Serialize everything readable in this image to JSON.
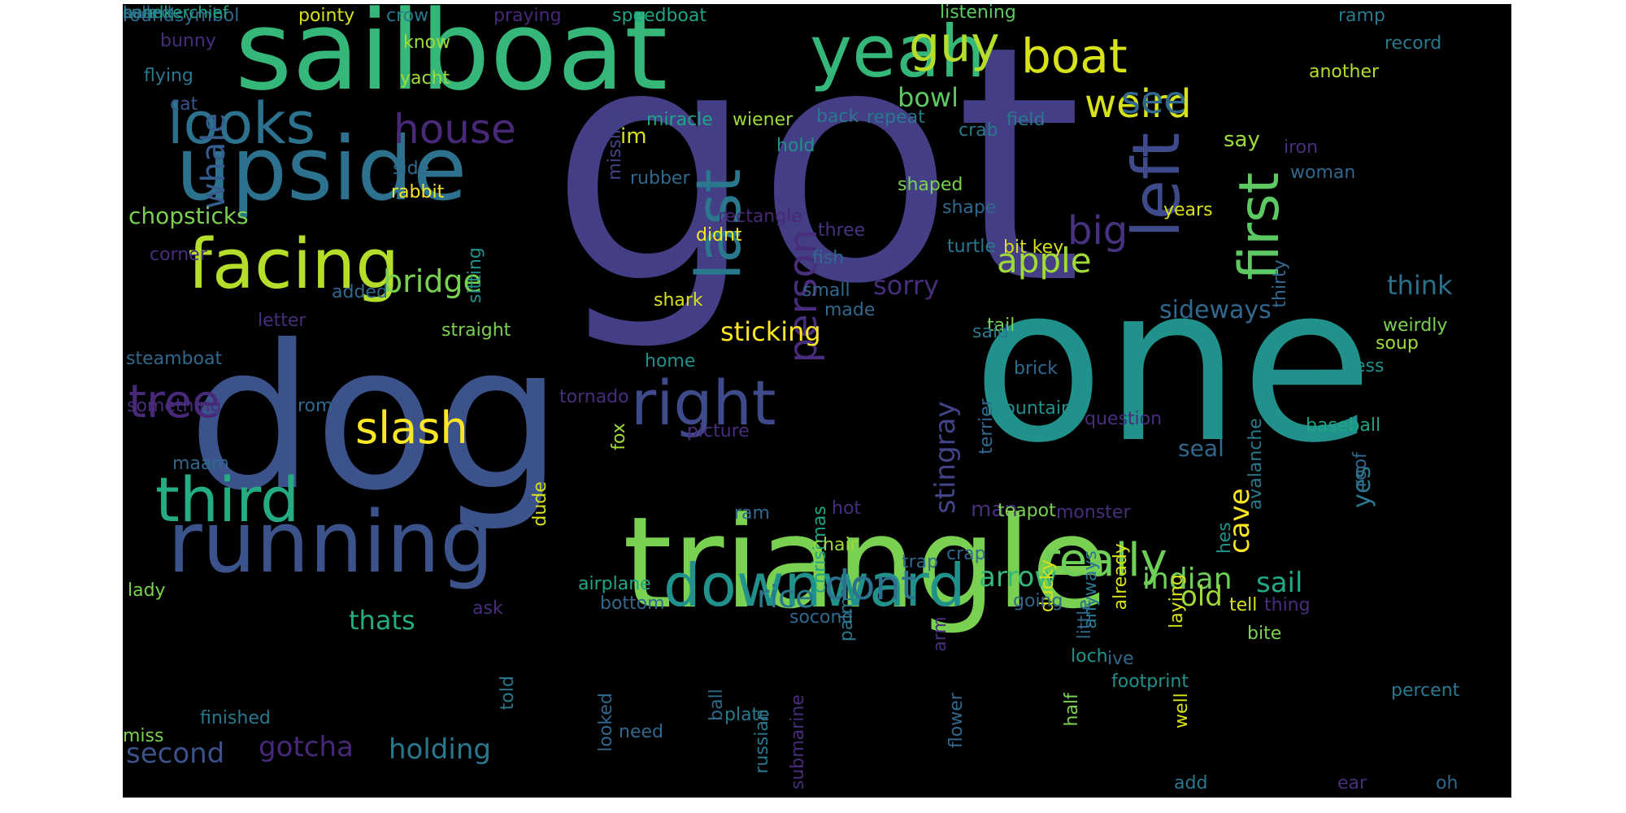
{
  "colors": {
    "page_background": "#ffffff",
    "cloud_background": "#000000",
    "palette": [
      "#440154",
      "#472c7a",
      "#3b518b",
      "#2c718e",
      "#21908d",
      "#27ad81",
      "#5cc863",
      "#aadc32",
      "#fde725"
    ]
  },
  "words": [
    {
      "text": "got",
      "weight": 1.0,
      "color": "#433e85"
    },
    {
      "text": "one",
      "weight": 0.62,
      "color": "#21918c"
    },
    {
      "text": "dog",
      "weight": 0.6,
      "color": "#3b528b"
    },
    {
      "text": "triangle",
      "weight": 0.57,
      "color": "#7ad151"
    },
    {
      "text": "sailboat",
      "weight": 0.49,
      "color": "#35b779"
    },
    {
      "text": "upside",
      "weight": 0.45,
      "color": "#2c728e"
    },
    {
      "text": "running",
      "weight": 0.4,
      "color": "#3b528b"
    },
    {
      "text": "yeah",
      "weight": 0.38,
      "color": "#35b779"
    },
    {
      "text": "facing",
      "weight": 0.38,
      "color": "#b5de2b"
    },
    {
      "text": "left",
      "weight": 0.36,
      "color": "#3e4a89"
    },
    {
      "text": "last",
      "weight": 0.35,
      "color": "#2a788e"
    },
    {
      "text": "third",
      "weight": 0.33,
      "color": "#25ac82"
    },
    {
      "text": "right",
      "weight": 0.33,
      "color": "#3e4a89"
    },
    {
      "text": "downward",
      "weight": 0.31,
      "color": "#21918c"
    },
    {
      "text": "looks",
      "weight": 0.3,
      "color": "#2c728e"
    },
    {
      "text": "first",
      "weight": 0.29,
      "color": "#5ec962"
    },
    {
      "text": "guy",
      "weight": 0.27,
      "color": "#b5de2b"
    },
    {
      "text": "boat",
      "weight": 0.27,
      "color": "#d8e219"
    },
    {
      "text": "really",
      "weight": 0.26,
      "color": "#6ece58"
    },
    {
      "text": "person",
      "weight": 0.25,
      "color": "#472d7b"
    },
    {
      "text": "tree",
      "weight": 0.23,
      "color": "#482878"
    },
    {
      "text": "slash",
      "weight": 0.23,
      "color": "#fde725"
    },
    {
      "text": "house",
      "weight": 0.22,
      "color": "#482878"
    },
    {
      "text": "dont",
      "weight": 0.22,
      "color": "#2c728e"
    },
    {
      "text": "weird",
      "weight": 0.2,
      "color": "#d8e219"
    },
    {
      "text": "big",
      "weight": 0.2,
      "color": "#46327e"
    },
    {
      "text": "see",
      "weight": 0.2,
      "color": "#31688e"
    },
    {
      "text": "whale",
      "weight": 0.19,
      "color": "#365c8d"
    },
    {
      "text": "apple",
      "weight": 0.18,
      "color": "#a0da39"
    },
    {
      "text": "rice",
      "weight": 0.17,
      "color": "#2a788e"
    },
    {
      "text": "bridge",
      "weight": 0.16,
      "color": "#7ad151"
    },
    {
      "text": "stingray",
      "weight": 0.16,
      "color": "#414487"
    },
    {
      "text": "second",
      "weight": 0.16,
      "color": "#3b528b"
    },
    {
      "text": "indian",
      "weight": 0.16,
      "color": "#6ece58"
    },
    {
      "text": "cave",
      "weight": 0.15,
      "color": "#fde725"
    },
    {
      "text": "sail",
      "weight": 0.15,
      "color": "#22a884"
    },
    {
      "text": "old",
      "weight": 0.15,
      "color": "#a0da39"
    },
    {
      "text": "holding",
      "weight": 0.15,
      "color": "#2a788e"
    },
    {
      "text": "arrow",
      "weight": 0.15,
      "color": "#35b779"
    },
    {
      "text": "gotcha",
      "weight": 0.15,
      "color": "#482878"
    },
    {
      "text": "sticking",
      "weight": 0.14,
      "color": "#fde725"
    },
    {
      "text": "bowl",
      "weight": 0.14,
      "color": "#5ec962"
    },
    {
      "text": "thats",
      "weight": 0.14,
      "color": "#25ac82"
    },
    {
      "text": "sorry",
      "weight": 0.14,
      "color": "#472d7b"
    },
    {
      "text": "think",
      "weight": 0.14,
      "color": "#2c728e"
    },
    {
      "text": "yes",
      "weight": 0.14,
      "color": "#2a788e"
    },
    {
      "text": "sideways",
      "weight": 0.12,
      "color": "#31688e"
    },
    {
      "text": "seal",
      "weight": 0.12,
      "color": "#31688e"
    },
    {
      "text": "chopsticks",
      "weight": 0.12,
      "color": "#7ad151"
    },
    {
      "text": "say",
      "weight": 0.12,
      "color": "#a0da39"
    },
    {
      "text": "im",
      "weight": 0.11,
      "color": "#d8e219"
    },
    {
      "text": "man",
      "weight": 0.11,
      "color": "#472d7b"
    },
    {
      "text": "roundsymbol",
      "weight": 0.09,
      "color": "#31688e"
    },
    {
      "text": "pointy",
      "weight": 0.09,
      "color": "#d8e219"
    },
    {
      "text": "crow",
      "weight": 0.09,
      "color": "#2a788e"
    },
    {
      "text": "praying",
      "weight": 0.09,
      "color": "#482878"
    },
    {
      "text": "speedboat",
      "weight": 0.09,
      "color": "#20a486"
    },
    {
      "text": "listening",
      "weight": 0.09,
      "color": "#5ec962"
    },
    {
      "text": "ramp",
      "weight": 0.09,
      "color": "#2a788e"
    },
    {
      "text": "record",
      "weight": 0.09,
      "color": "#2a788e"
    },
    {
      "text": "another",
      "weight": 0.09,
      "color": "#b5de2b"
    },
    {
      "text": "bunny",
      "weight": 0.09,
      "color": "#472d7b"
    },
    {
      "text": "know",
      "weight": 0.09,
      "color": "#a0da39"
    },
    {
      "text": "yacht",
      "weight": 0.09,
      "color": "#a0da39"
    },
    {
      "text": "missing",
      "weight": 0.09,
      "color": "#414487"
    },
    {
      "text": "flying",
      "weight": 0.09,
      "color": "#2a788e"
    },
    {
      "text": "cat",
      "weight": 0.09,
      "color": "#3b528b"
    },
    {
      "text": "miracle",
      "weight": 0.09,
      "color": "#20a486"
    },
    {
      "text": "wiener",
      "weight": 0.09,
      "color": "#a0da39"
    },
    {
      "text": "back",
      "weight": 0.09,
      "color": "#2a788e"
    },
    {
      "text": "repeat",
      "weight": 0.09,
      "color": "#2a788e"
    },
    {
      "text": "crab",
      "weight": 0.09,
      "color": "#2a788e"
    },
    {
      "text": "field",
      "weight": 0.09,
      "color": "#2a788e"
    },
    {
      "text": "iron",
      "weight": 0.09,
      "color": "#472d7b"
    },
    {
      "text": "woman",
      "weight": 0.09,
      "color": "#31688e"
    },
    {
      "text": "hold",
      "weight": 0.09,
      "color": "#21918c"
    },
    {
      "text": "side",
      "weight": 0.09,
      "color": "#31688e"
    },
    {
      "text": "rabbit",
      "weight": 0.09,
      "color": "#fde725"
    },
    {
      "text": "rubber",
      "weight": 0.09,
      "color": "#31688e"
    },
    {
      "text": "shaped",
      "weight": 0.09,
      "color": "#7ad151"
    },
    {
      "text": "years",
      "weight": 0.09,
      "color": "#d8e219"
    },
    {
      "text": "sitting",
      "weight": 0.09,
      "color": "#21918c"
    },
    {
      "text": "rectangle",
      "weight": 0.09,
      "color": "#482878"
    },
    {
      "text": "didnt",
      "weight": 0.09,
      "color": "#fde725"
    },
    {
      "text": "three",
      "weight": 0.09,
      "color": "#46327e"
    },
    {
      "text": "shape",
      "weight": 0.09,
      "color": "#31688e"
    },
    {
      "text": "turtle",
      "weight": 0.09,
      "color": "#2a788e"
    },
    {
      "text": "bit key",
      "weight": 0.09,
      "color": "#d8e219"
    },
    {
      "text": "corner",
      "weight": 0.09,
      "color": "#472d7b"
    },
    {
      "text": "fish",
      "weight": 0.09,
      "color": "#31688e"
    },
    {
      "text": "thirty",
      "weight": 0.09,
      "color": "#31688e"
    },
    {
      "text": "added",
      "weight": 0.09,
      "color": "#31688e"
    },
    {
      "text": "small",
      "weight": 0.09,
      "color": "#31688e"
    },
    {
      "text": "shark",
      "weight": 0.09,
      "color": "#d8e219"
    },
    {
      "text": "made",
      "weight": 0.09,
      "color": "#31688e"
    },
    {
      "text": "tail",
      "weight": 0.09,
      "color": "#7ad151"
    },
    {
      "text": "weirdly",
      "weight": 0.09,
      "color": "#7ad151"
    },
    {
      "text": "letter",
      "weight": 0.09,
      "color": "#472d7b"
    },
    {
      "text": "straight",
      "weight": 0.09,
      "color": "#7ad151"
    },
    {
      "text": "said",
      "weight": 0.09,
      "color": "#2a788e"
    },
    {
      "text": "soup",
      "weight": 0.09,
      "color": "#a0da39"
    },
    {
      "text": "steamboat",
      "weight": 0.09,
      "color": "#31688e"
    },
    {
      "text": "home",
      "weight": 0.09,
      "color": "#21918c"
    },
    {
      "text": "brick",
      "weight": 0.09,
      "color": "#31688e"
    },
    {
      "text": "ness",
      "weight": 0.09,
      "color": "#21918c"
    },
    {
      "text": "rom",
      "weight": 0.09,
      "color": "#31688e"
    },
    {
      "text": "tornado",
      "weight": 0.09,
      "color": "#472d7b"
    },
    {
      "text": "terrier",
      "weight": 0.09,
      "color": "#31688e"
    },
    {
      "text": "mountain",
      "weight": 0.09,
      "color": "#21918c"
    },
    {
      "text": "question",
      "weight": 0.09,
      "color": "#472d7b"
    },
    {
      "text": "avalanche",
      "weight": 0.09,
      "color": "#2a788e"
    },
    {
      "text": "baseball",
      "weight": 0.09,
      "color": "#20a486"
    },
    {
      "text": "picture",
      "weight": 0.09,
      "color": "#472d7b"
    },
    {
      "text": "something",
      "weight": 0.09,
      "color": "#472d7b"
    },
    {
      "text": "maam",
      "weight": 0.09,
      "color": "#31688e"
    },
    {
      "text": "roof",
      "weight": 0.09,
      "color": "#31688e"
    },
    {
      "text": "fox",
      "weight": 0.09,
      "color": "#a0da39"
    },
    {
      "text": "dude",
      "weight": 0.09,
      "color": "#d8e219"
    },
    {
      "text": "hot",
      "weight": 0.09,
      "color": "#472d7b"
    },
    {
      "text": "hes",
      "weight": 0.09,
      "color": "#21918c"
    },
    {
      "text": "teapot",
      "weight": 0.09,
      "color": "#7ad151"
    },
    {
      "text": "christmas",
      "weight": 0.09,
      "color": "#20a486"
    },
    {
      "text": "ram",
      "weight": 0.09,
      "color": "#31688e"
    },
    {
      "text": "chair",
      "weight": 0.09,
      "color": "#a0da39"
    },
    {
      "text": "monster",
      "weight": 0.09,
      "color": "#472d7b"
    },
    {
      "text": "ducky",
      "weight": 0.09,
      "color": "#d8e219"
    },
    {
      "text": "anyways",
      "weight": 0.09,
      "color": "#2a788e"
    },
    {
      "text": "trap",
      "weight": 0.09,
      "color": "#31688e"
    },
    {
      "text": "already",
      "weight": 0.09,
      "color": "#d8e219"
    },
    {
      "text": "crap",
      "weight": 0.09,
      "color": "#31688e"
    },
    {
      "text": "lady",
      "weight": 0.09,
      "color": "#7ad151"
    },
    {
      "text": "airplane",
      "weight": 0.09,
      "color": "#20a486"
    },
    {
      "text": "bottom",
      "weight": 0.09,
      "color": "#31688e"
    },
    {
      "text": "tell",
      "weight": 0.09,
      "color": "#d8e219"
    },
    {
      "text": "socond",
      "weight": 0.09,
      "color": "#31688e"
    },
    {
      "text": "palm",
      "weight": 0.09,
      "color": "#2a788e"
    },
    {
      "text": "bite",
      "weight": 0.09,
      "color": "#7ad151"
    },
    {
      "text": "thing",
      "weight": 0.09,
      "color": "#472d7b"
    },
    {
      "text": "laying",
      "weight": 0.09,
      "color": "#d8e219"
    },
    {
      "text": "ask",
      "weight": 0.09,
      "color": "#472d7b"
    },
    {
      "text": "little",
      "weight": 0.09,
      "color": "#31688e"
    },
    {
      "text": "arm",
      "weight": 0.09,
      "color": "#472d7b"
    },
    {
      "text": "going",
      "weight": 0.09,
      "color": "#31688e"
    },
    {
      "text": "ive",
      "weight": 0.09,
      "color": "#31688e"
    },
    {
      "text": "loch",
      "weight": 0.09,
      "color": "#21918c"
    },
    {
      "text": "footprint",
      "weight": 0.09,
      "color": "#21918c"
    },
    {
      "text": "flower",
      "weight": 0.09,
      "color": "#31688e"
    },
    {
      "text": "half",
      "weight": 0.09,
      "color": "#7ad151"
    },
    {
      "text": "well",
      "weight": 0.09,
      "color": "#d8e219"
    },
    {
      "text": "ball",
      "weight": 0.09,
      "color": "#31688e"
    },
    {
      "text": "looked",
      "weight": 0.09,
      "color": "#31688e"
    },
    {
      "text": "told",
      "weight": 0.09,
      "color": "#2a788e"
    },
    {
      "text": "percent",
      "weight": 0.09,
      "color": "#2a788e"
    },
    {
      "text": "submarine",
      "weight": 0.09,
      "color": "#472d7b"
    },
    {
      "text": "russian",
      "weight": 0.09,
      "color": "#2a788e"
    },
    {
      "text": "plate",
      "weight": 0.09,
      "color": "#2a788e"
    },
    {
      "text": "finished",
      "weight": 0.09,
      "color": "#2a788e"
    },
    {
      "text": "miss",
      "weight": 0.09,
      "color": "#7ad151"
    },
    {
      "text": "need",
      "weight": 0.09,
      "color": "#31688e"
    },
    {
      "text": "add",
      "weight": 0.09,
      "color": "#2a788e"
    },
    {
      "text": "ear",
      "weight": 0.09,
      "color": "#472d7b"
    },
    {
      "text": "oh",
      "weight": 0.09,
      "color": "#31688e"
    },
    {
      "text": "sure",
      "weight": 0.09,
      "color": "#2a788e"
    },
    {
      "text": "call",
      "weight": 0.09,
      "color": "#31688e"
    },
    {
      "text": "handkerchief",
      "weight": 0.09,
      "color": "#20a486"
    },
    {
      "text": "based",
      "weight": 0.09,
      "color": "#2a788e"
    }
  ]
}
